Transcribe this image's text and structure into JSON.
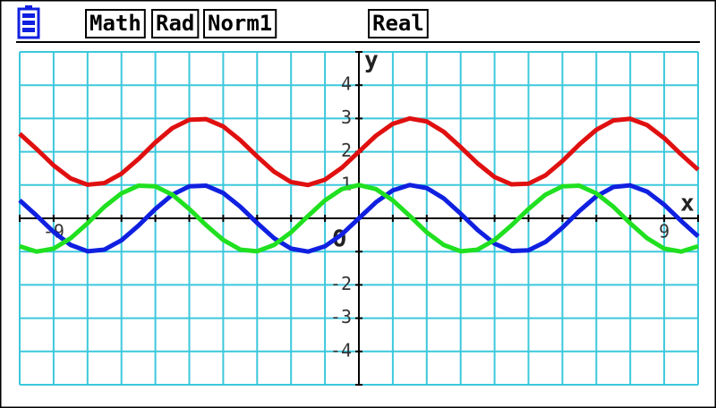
{
  "status_bar": [
    "Math",
    "Rad",
    "Norm1",
    "Real"
  ],
  "chart_data": {
    "type": "line",
    "x_label": "x",
    "y_label": "y",
    "origin_label": "O",
    "x": [
      -10,
      -9.5,
      -9,
      -8.5,
      -8,
      -7.5,
      -7,
      -6.5,
      -6,
      -5.5,
      -5,
      -4.5,
      -4,
      -3.5,
      -3,
      -2.5,
      -2,
      -1.5,
      -1,
      -0.5,
      0,
      0.5,
      1,
      1.5,
      2,
      2.5,
      3,
      3.5,
      4,
      4.5,
      5,
      5.5,
      6,
      6.5,
      7,
      7.5,
      8,
      8.5,
      9,
      9.5,
      10
    ],
    "series": [
      {
        "color": "#e01010",
        "values": [
          2.54,
          2.08,
          1.59,
          1.2,
          1.01,
          1.06,
          1.34,
          1.78,
          2.28,
          2.71,
          2.96,
          2.98,
          2.76,
          2.35,
          1.86,
          1.4,
          1.09,
          1,
          1.16,
          1.52,
          2,
          2.48,
          2.84,
          3,
          2.91,
          2.6,
          2.14,
          1.65,
          1.24,
          1.02,
          1.04,
          1.29,
          1.72,
          2.22,
          2.66,
          2.94,
          2.99,
          2.8,
          2.41,
          1.92,
          1.46
        ]
      },
      {
        "color": "#1020e0",
        "values": [
          0.54,
          0.08,
          -0.41,
          -0.8,
          -0.99,
          -0.94,
          -0.66,
          -0.22,
          0.28,
          0.71,
          0.96,
          0.98,
          0.76,
          0.35,
          -0.14,
          -0.6,
          -0.91,
          -1,
          -0.84,
          -0.48,
          0,
          0.48,
          0.84,
          1,
          0.91,
          0.6,
          0.14,
          -0.35,
          -0.76,
          -0.98,
          -0.96,
          -0.71,
          -0.28,
          0.22,
          0.66,
          0.94,
          0.99,
          0.8,
          0.41,
          -0.08,
          -0.54
        ]
      },
      {
        "color": "#20e020",
        "values": [
          -0.84,
          -1,
          -0.91,
          -0.6,
          -0.15,
          0.35,
          0.75,
          0.98,
          0.96,
          0.71,
          0.28,
          -0.21,
          -0.65,
          -0.94,
          -0.99,
          -0.8,
          -0.42,
          0.07,
          0.54,
          0.88,
          1,
          0.88,
          0.54,
          0.07,
          -0.42,
          -0.8,
          -0.99,
          -0.94,
          -0.65,
          -0.21,
          0.28,
          0.71,
          0.96,
          0.98,
          0.75,
          0.35,
          -0.15,
          -0.6,
          -0.91,
          -1,
          -0.84
        ]
      }
    ],
    "xlim": [
      -10,
      10
    ],
    "ylim": [
      -5,
      5
    ],
    "xticks": [
      -9,
      9
    ],
    "yticks": [
      4,
      3,
      2,
      1,
      -2,
      -3,
      -4
    ],
    "xgrid": [
      -10,
      -9,
      -8,
      -7,
      -6,
      -5,
      -4,
      -3,
      -2,
      -1,
      0,
      1,
      2,
      3,
      4,
      5,
      6,
      7,
      8,
      9,
      10
    ],
    "ygrid": [
      -5,
      -4,
      -3,
      -2,
      -1,
      0,
      1,
      2,
      3,
      4,
      5
    ],
    "grid": true,
    "grid_color": "#3cc8dc"
  }
}
